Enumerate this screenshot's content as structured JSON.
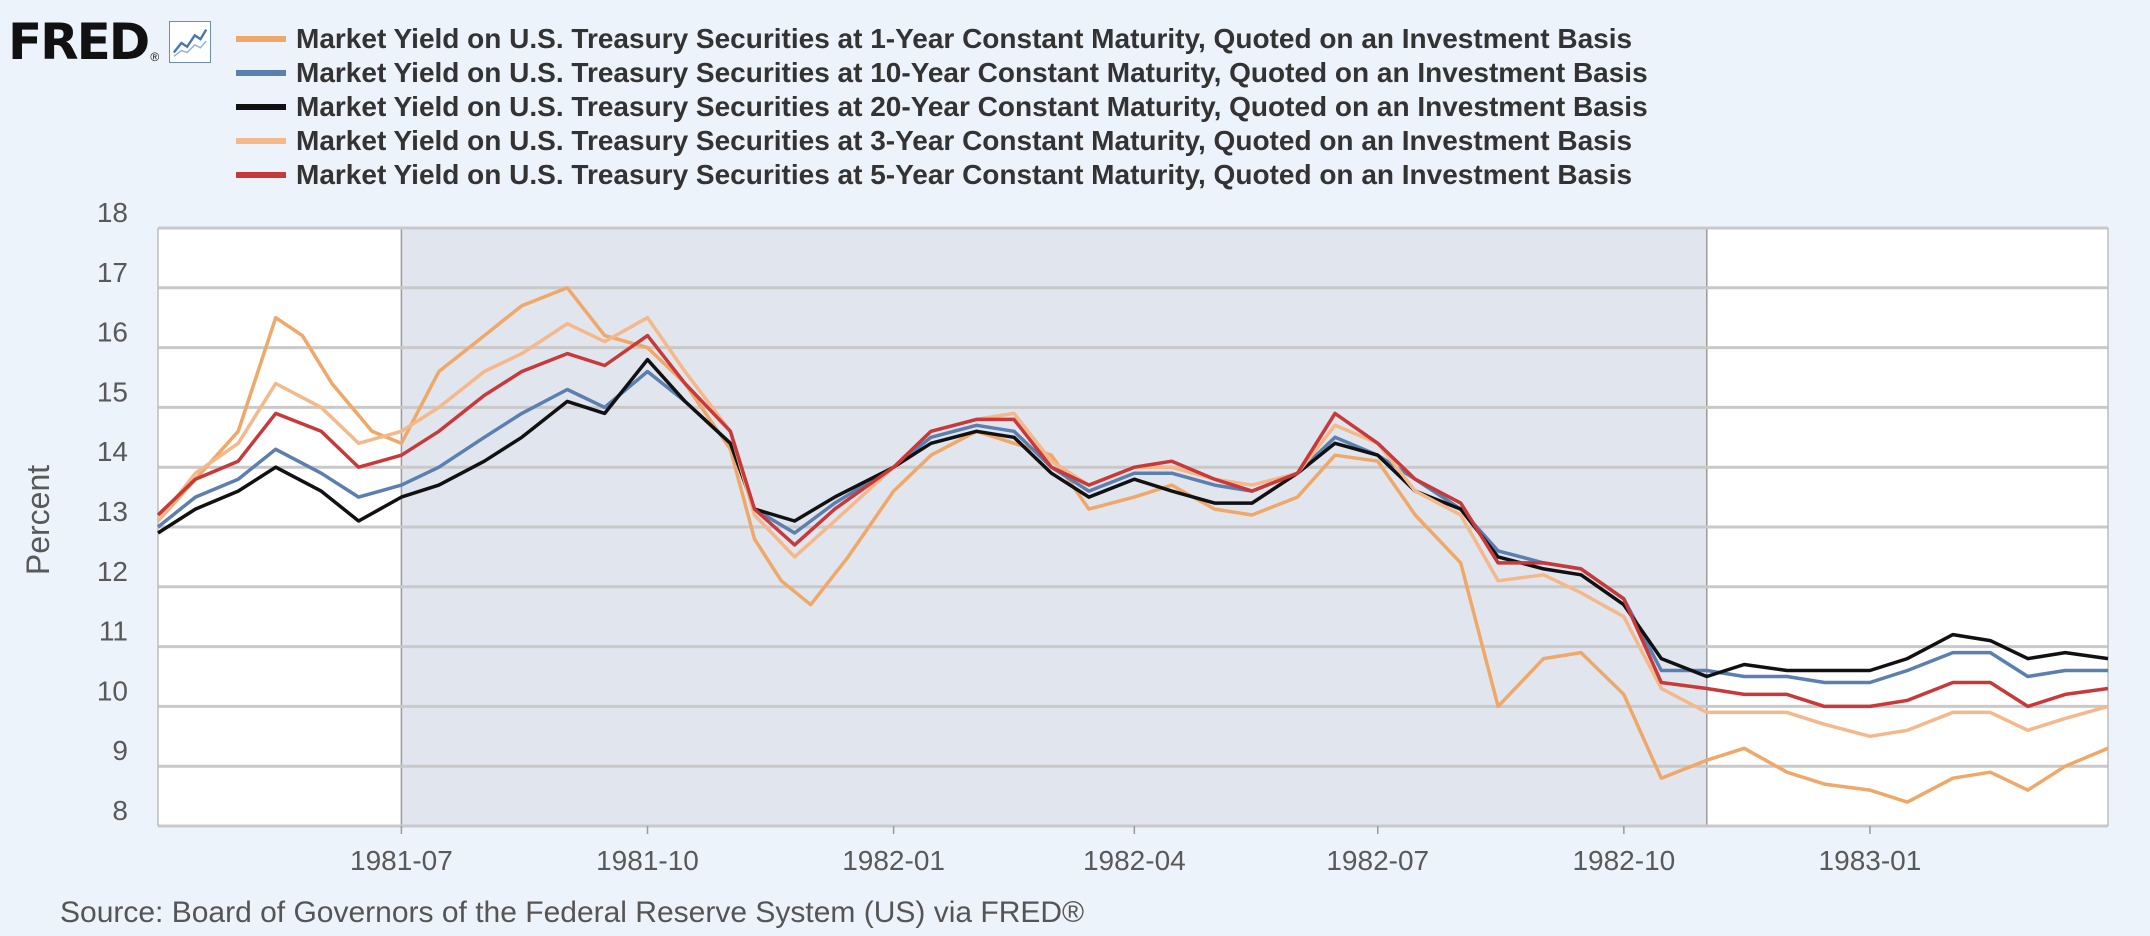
{
  "logo": {
    "text": "FRED",
    "reg": "®",
    "icon": "line-chart-icon"
  },
  "colors": {
    "background": "#edf3fa",
    "plot_bg": "#ffffff",
    "recession": "#e1e5ee",
    "grid": "#c9c9c9"
  },
  "source": "Source: Board of Governors of the Federal Reserve System (US) via FRED®",
  "chart_data": {
    "type": "line",
    "ylabel": "Percent",
    "ylim": [
      8,
      18
    ],
    "yticks": [
      8,
      9,
      10,
      11,
      12,
      13,
      14,
      15,
      16,
      17,
      18
    ],
    "xlim": [
      "1981-04-01",
      "1983-03-31"
    ],
    "xticks": [
      "1981-07",
      "1981-10",
      "1982-01",
      "1982-04",
      "1982-07",
      "1982-10",
      "1983-01"
    ],
    "grid": true,
    "legend_position": "top",
    "recession_shading": [
      {
        "start": "1981-07-01",
        "end": "1982-11-01"
      }
    ],
    "series": [
      {
        "name": "Market Yield on U.S. Treasury Securities at 1-Year Constant Maturity, Quoted on an Investment Basis",
        "color": "#f0a868",
        "points": [
          [
            "1981-04-01",
            13.1
          ],
          [
            "1981-04-15",
            13.8
          ],
          [
            "1981-05-01",
            14.6
          ],
          [
            "1981-05-15",
            16.5
          ],
          [
            "1981-05-25",
            16.2
          ],
          [
            "1981-06-05",
            15.4
          ],
          [
            "1981-06-20",
            14.6
          ],
          [
            "1981-07-01",
            14.4
          ],
          [
            "1981-07-15",
            15.6
          ],
          [
            "1981-08-01",
            16.2
          ],
          [
            "1981-08-15",
            16.7
          ],
          [
            "1981-09-01",
            17.0
          ],
          [
            "1981-09-15",
            16.2
          ],
          [
            "1981-10-01",
            16.0
          ],
          [
            "1981-10-15",
            15.4
          ],
          [
            "1981-11-01",
            14.3
          ],
          [
            "1981-11-10",
            12.8
          ],
          [
            "1981-11-20",
            12.1
          ],
          [
            "1981-12-01",
            11.7
          ],
          [
            "1981-12-15",
            12.5
          ],
          [
            "1982-01-01",
            13.6
          ],
          [
            "1982-01-15",
            14.2
          ],
          [
            "1982-02-01",
            14.6
          ],
          [
            "1982-02-15",
            14.4
          ],
          [
            "1982-03-01",
            14.2
          ],
          [
            "1982-03-15",
            13.3
          ],
          [
            "1982-04-01",
            13.5
          ],
          [
            "1982-04-15",
            13.7
          ],
          [
            "1982-05-01",
            13.3
          ],
          [
            "1982-05-15",
            13.2
          ],
          [
            "1982-06-01",
            13.5
          ],
          [
            "1982-06-15",
            14.2
          ],
          [
            "1982-07-01",
            14.1
          ],
          [
            "1982-07-15",
            13.2
          ],
          [
            "1982-08-01",
            12.4
          ],
          [
            "1982-08-15",
            10.0
          ],
          [
            "1982-09-01",
            10.8
          ],
          [
            "1982-09-15",
            10.9
          ],
          [
            "1982-10-01",
            10.2
          ],
          [
            "1982-10-10",
            9.3
          ],
          [
            "1982-10-15",
            8.8
          ],
          [
            "1982-11-01",
            9.1
          ],
          [
            "1982-11-15",
            9.3
          ],
          [
            "1982-12-01",
            8.9
          ],
          [
            "1982-12-15",
            8.7
          ],
          [
            "1983-01-01",
            8.6
          ],
          [
            "1983-01-15",
            8.4
          ],
          [
            "1983-02-01",
            8.8
          ],
          [
            "1983-02-15",
            8.9
          ],
          [
            "1983-03-01",
            8.6
          ],
          [
            "1983-03-15",
            9.0
          ],
          [
            "1983-03-31",
            9.3
          ]
        ]
      },
      {
        "name": "Market Yield on U.S. Treasury Securities at 10-Year Constant Maturity, Quoted on an Investment Basis",
        "color": "#5b7fb0",
        "points": [
          [
            "1981-04-01",
            13.0
          ],
          [
            "1981-04-15",
            13.5
          ],
          [
            "1981-05-01",
            13.8
          ],
          [
            "1981-05-15",
            14.3
          ],
          [
            "1981-06-01",
            13.9
          ],
          [
            "1981-06-15",
            13.5
          ],
          [
            "1981-07-01",
            13.7
          ],
          [
            "1981-07-15",
            14.0
          ],
          [
            "1981-08-01",
            14.5
          ],
          [
            "1981-08-15",
            14.9
          ],
          [
            "1981-09-01",
            15.3
          ],
          [
            "1981-09-15",
            15.0
          ],
          [
            "1981-10-01",
            15.6
          ],
          [
            "1981-10-15",
            15.1
          ],
          [
            "1981-11-01",
            14.4
          ],
          [
            "1981-11-10",
            13.3
          ],
          [
            "1981-11-25",
            12.9
          ],
          [
            "1981-12-10",
            13.4
          ],
          [
            "1982-01-01",
            14.0
          ],
          [
            "1982-01-15",
            14.5
          ],
          [
            "1982-02-01",
            14.7
          ],
          [
            "1982-02-15",
            14.6
          ],
          [
            "1982-03-01",
            14.0
          ],
          [
            "1982-03-15",
            13.6
          ],
          [
            "1982-04-01",
            13.9
          ],
          [
            "1982-04-15",
            13.9
          ],
          [
            "1982-05-01",
            13.7
          ],
          [
            "1982-05-15",
            13.6
          ],
          [
            "1982-06-01",
            13.9
          ],
          [
            "1982-06-15",
            14.5
          ],
          [
            "1982-07-01",
            14.2
          ],
          [
            "1982-07-15",
            13.8
          ],
          [
            "1982-08-01",
            13.3
          ],
          [
            "1982-08-15",
            12.6
          ],
          [
            "1982-09-01",
            12.4
          ],
          [
            "1982-09-15",
            12.3
          ],
          [
            "1982-10-01",
            11.8
          ],
          [
            "1982-10-15",
            10.6
          ],
          [
            "1982-11-01",
            10.6
          ],
          [
            "1982-11-15",
            10.5
          ],
          [
            "1982-12-01",
            10.5
          ],
          [
            "1982-12-15",
            10.4
          ],
          [
            "1983-01-01",
            10.4
          ],
          [
            "1983-01-15",
            10.6
          ],
          [
            "1983-02-01",
            10.9
          ],
          [
            "1983-02-15",
            10.9
          ],
          [
            "1983-03-01",
            10.5
          ],
          [
            "1983-03-15",
            10.6
          ],
          [
            "1983-03-31",
            10.6
          ]
        ]
      },
      {
        "name": "Market Yield on U.S. Treasury Securities at 20-Year Constant Maturity, Quoted on an Investment Basis",
        "color": "#111111",
        "points": [
          [
            "1981-04-01",
            12.9
          ],
          [
            "1981-04-15",
            13.3
          ],
          [
            "1981-05-01",
            13.6
          ],
          [
            "1981-05-15",
            14.0
          ],
          [
            "1981-06-01",
            13.6
          ],
          [
            "1981-06-15",
            13.1
          ],
          [
            "1981-07-01",
            13.5
          ],
          [
            "1981-07-15",
            13.7
          ],
          [
            "1981-08-01",
            14.1
          ],
          [
            "1981-08-15",
            14.5
          ],
          [
            "1981-09-01",
            15.1
          ],
          [
            "1981-09-15",
            14.9
          ],
          [
            "1981-10-01",
            15.8
          ],
          [
            "1981-10-15",
            15.1
          ],
          [
            "1981-11-01",
            14.4
          ],
          [
            "1981-11-10",
            13.3
          ],
          [
            "1981-11-25",
            13.1
          ],
          [
            "1981-12-10",
            13.5
          ],
          [
            "1982-01-01",
            14.0
          ],
          [
            "1982-01-15",
            14.4
          ],
          [
            "1982-02-01",
            14.6
          ],
          [
            "1982-02-15",
            14.5
          ],
          [
            "1982-03-01",
            13.9
          ],
          [
            "1982-03-15",
            13.5
          ],
          [
            "1982-04-01",
            13.8
          ],
          [
            "1982-04-15",
            13.6
          ],
          [
            "1982-05-01",
            13.4
          ],
          [
            "1982-05-15",
            13.4
          ],
          [
            "1982-06-01",
            13.9
          ],
          [
            "1982-06-15",
            14.4
          ],
          [
            "1982-07-01",
            14.2
          ],
          [
            "1982-07-15",
            13.6
          ],
          [
            "1982-08-01",
            13.3
          ],
          [
            "1982-08-15",
            12.5
          ],
          [
            "1982-09-01",
            12.3
          ],
          [
            "1982-09-15",
            12.2
          ],
          [
            "1982-10-01",
            11.7
          ],
          [
            "1982-10-15",
            10.8
          ],
          [
            "1982-11-01",
            10.5
          ],
          [
            "1982-11-15",
            10.7
          ],
          [
            "1982-12-01",
            10.6
          ],
          [
            "1982-12-15",
            10.6
          ],
          [
            "1983-01-01",
            10.6
          ],
          [
            "1983-01-15",
            10.8
          ],
          [
            "1983-02-01",
            11.2
          ],
          [
            "1983-02-15",
            11.1
          ],
          [
            "1983-03-01",
            10.8
          ],
          [
            "1983-03-15",
            10.9
          ],
          [
            "1983-03-31",
            10.8
          ]
        ]
      },
      {
        "name": "Market Yield on U.S. Treasury Securities at 3-Year Constant Maturity, Quoted on an Investment Basis",
        "color": "#f5b88a",
        "points": [
          [
            "1981-04-01",
            13.1
          ],
          [
            "1981-04-15",
            13.9
          ],
          [
            "1981-05-01",
            14.4
          ],
          [
            "1981-05-15",
            15.4
          ],
          [
            "1981-06-01",
            15.0
          ],
          [
            "1981-06-15",
            14.4
          ],
          [
            "1981-07-01",
            14.6
          ],
          [
            "1981-07-15",
            15.0
          ],
          [
            "1981-08-01",
            15.6
          ],
          [
            "1981-08-15",
            15.9
          ],
          [
            "1981-09-01",
            16.4
          ],
          [
            "1981-09-15",
            16.1
          ],
          [
            "1981-10-01",
            16.5
          ],
          [
            "1981-10-15",
            15.6
          ],
          [
            "1981-11-01",
            14.6
          ],
          [
            "1981-11-10",
            13.2
          ],
          [
            "1981-11-25",
            12.5
          ],
          [
            "1981-12-10",
            13.1
          ],
          [
            "1982-01-01",
            14.0
          ],
          [
            "1982-01-15",
            14.6
          ],
          [
            "1982-02-01",
            14.8
          ],
          [
            "1982-02-15",
            14.9
          ],
          [
            "1982-03-01",
            14.1
          ],
          [
            "1982-03-15",
            13.7
          ],
          [
            "1982-04-01",
            14.0
          ],
          [
            "1982-04-15",
            14.0
          ],
          [
            "1982-05-01",
            13.8
          ],
          [
            "1982-05-15",
            13.7
          ],
          [
            "1982-06-01",
            13.9
          ],
          [
            "1982-06-15",
            14.7
          ],
          [
            "1982-07-01",
            14.4
          ],
          [
            "1982-07-15",
            13.6
          ],
          [
            "1982-08-01",
            13.2
          ],
          [
            "1982-08-15",
            12.1
          ],
          [
            "1982-09-01",
            12.2
          ],
          [
            "1982-09-15",
            11.9
          ],
          [
            "1982-10-01",
            11.5
          ],
          [
            "1982-10-15",
            10.3
          ],
          [
            "1982-11-01",
            9.9
          ],
          [
            "1982-11-15",
            9.9
          ],
          [
            "1982-12-01",
            9.9
          ],
          [
            "1982-12-15",
            9.7
          ],
          [
            "1983-01-01",
            9.5
          ],
          [
            "1983-01-15",
            9.6
          ],
          [
            "1983-02-01",
            9.9
          ],
          [
            "1983-02-15",
            9.9
          ],
          [
            "1983-03-01",
            9.6
          ],
          [
            "1983-03-15",
            9.8
          ],
          [
            "1983-03-31",
            10.0
          ]
        ]
      },
      {
        "name": "Market Yield on U.S. Treasury Securities at 5-Year Constant Maturity, Quoted on an Investment Basis",
        "color": "#c8393a",
        "points": [
          [
            "1981-04-01",
            13.2
          ],
          [
            "1981-04-15",
            13.8
          ],
          [
            "1981-05-01",
            14.1
          ],
          [
            "1981-05-15",
            14.9
          ],
          [
            "1981-06-01",
            14.6
          ],
          [
            "1981-06-15",
            14.0
          ],
          [
            "1981-07-01",
            14.2
          ],
          [
            "1981-07-15",
            14.6
          ],
          [
            "1981-08-01",
            15.2
          ],
          [
            "1981-08-15",
            15.6
          ],
          [
            "1981-09-01",
            15.9
          ],
          [
            "1981-09-15",
            15.7
          ],
          [
            "1981-10-01",
            16.2
          ],
          [
            "1981-10-15",
            15.4
          ],
          [
            "1981-11-01",
            14.6
          ],
          [
            "1981-11-10",
            13.3
          ],
          [
            "1981-11-25",
            12.7
          ],
          [
            "1981-12-10",
            13.3
          ],
          [
            "1982-01-01",
            14.0
          ],
          [
            "1982-01-15",
            14.6
          ],
          [
            "1982-02-01",
            14.8
          ],
          [
            "1982-02-15",
            14.8
          ],
          [
            "1982-03-01",
            14.0
          ],
          [
            "1982-03-15",
            13.7
          ],
          [
            "1982-04-01",
            14.0
          ],
          [
            "1982-04-15",
            14.1
          ],
          [
            "1982-05-01",
            13.8
          ],
          [
            "1982-05-15",
            13.6
          ],
          [
            "1982-06-01",
            13.9
          ],
          [
            "1982-06-15",
            14.9
          ],
          [
            "1982-07-01",
            14.4
          ],
          [
            "1982-07-15",
            13.8
          ],
          [
            "1982-08-01",
            13.4
          ],
          [
            "1982-08-15",
            12.4
          ],
          [
            "1982-09-01",
            12.4
          ],
          [
            "1982-09-15",
            12.3
          ],
          [
            "1982-10-01",
            11.8
          ],
          [
            "1982-10-15",
            10.4
          ],
          [
            "1982-11-01",
            10.3
          ],
          [
            "1982-11-15",
            10.2
          ],
          [
            "1982-12-01",
            10.2
          ],
          [
            "1982-12-15",
            10.0
          ],
          [
            "1983-01-01",
            10.0
          ],
          [
            "1983-01-15",
            10.1
          ],
          [
            "1983-02-01",
            10.4
          ],
          [
            "1983-02-15",
            10.4
          ],
          [
            "1983-03-01",
            10.0
          ],
          [
            "1983-03-15",
            10.2
          ],
          [
            "1983-03-31",
            10.3
          ]
        ]
      }
    ]
  }
}
